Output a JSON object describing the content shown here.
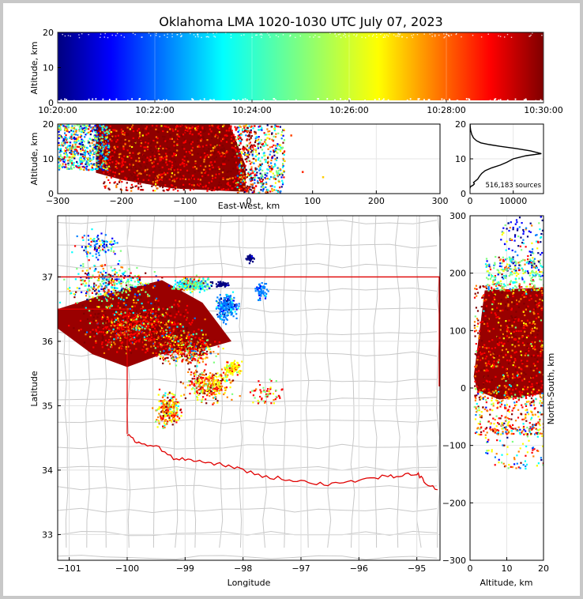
{
  "chart_data": {
    "type": "scatter",
    "title": "Oklahoma LMA 1020-1030 UTC July 07, 2023",
    "colormap": "jet (time)",
    "panels": {
      "time_height": {
        "ylabel": "Altitude, km",
        "ylim": [
          0,
          20
        ],
        "yticks": [
          "0",
          "10",
          "20"
        ],
        "xticks": [
          "10:20:00",
          "10:22:00",
          "10:24:00",
          "10:26:00",
          "10:28:00",
          "10:30:00"
        ],
        "xlim": [
          "10:20:00",
          "10:30:00"
        ]
      },
      "ew_height": {
        "ylabel": "Altitude, km",
        "xlabel": "East-West, km",
        "xlim": [
          -300,
          300
        ],
        "ylim": [
          0,
          20
        ],
        "xticks": [
          "−300",
          "−200",
          "−100",
          "0",
          "100",
          "200",
          "300"
        ],
        "yticks": [
          "0",
          "10",
          "20"
        ],
        "source_extent_x": [
          -300,
          60
        ],
        "source_extent_y": [
          0,
          20
        ]
      },
      "histogram": {
        "annotation": "516,183 sources",
        "xticks": [
          "0",
          "10000"
        ],
        "xlim": [
          0,
          17000
        ],
        "yticks": [
          "0",
          "10",
          "20"
        ],
        "ylim": [
          0,
          20
        ],
        "profile": [
          [
            0,
            1.5
          ],
          [
            100,
            2
          ],
          [
            700,
            2.4
          ],
          [
            1000,
            2.8
          ],
          [
            800,
            3.2
          ],
          [
            1200,
            3.6
          ],
          [
            1800,
            4.2
          ],
          [
            2200,
            5.0
          ],
          [
            2700,
            5.8
          ],
          [
            3500,
            6.6
          ],
          [
            5000,
            7.4
          ],
          [
            7000,
            8.2
          ],
          [
            8500,
            9.0
          ],
          [
            10000,
            10.0
          ],
          [
            13000,
            10.9
          ],
          [
            16500,
            11.5
          ],
          [
            14000,
            12.3
          ],
          [
            10500,
            13.0
          ],
          [
            7000,
            13.6
          ],
          [
            4500,
            14.1
          ],
          [
            2500,
            14.6
          ],
          [
            1500,
            15.2
          ],
          [
            800,
            16.0
          ],
          [
            400,
            17.0
          ],
          [
            150,
            18.2
          ],
          [
            40,
            19.3
          ],
          [
            10,
            20
          ]
        ]
      },
      "plan_view": {
        "xlabel": "Longitude",
        "ylabel": "Latitude",
        "xlim": [
          -101.2,
          -94.6
        ],
        "ylim": [
          32.6,
          37.95
        ],
        "xticks": [
          "−101",
          "−100",
          "−99",
          "−98",
          "−97",
          "−96",
          "−95"
        ],
        "yticks": [
          "33",
          "34",
          "35",
          "36",
          "37"
        ],
        "grid": true
      },
      "ns_height": {
        "xlabel": "Altitude, km",
        "ylabel": "North-South, km",
        "xlim": [
          0,
          20
        ],
        "ylim": [
          -300,
          300
        ],
        "xticks": [
          "0",
          "10",
          "20"
        ],
        "yticks": [
          "−300",
          "−200",
          "−100",
          "0",
          "100",
          "200",
          "300"
        ]
      }
    }
  },
  "colors": {
    "background": "#c8c8c8",
    "state_border": "#e00000",
    "county_lines": "#c0c0c0",
    "histogram_line": "#000000",
    "jet": [
      "#00007f",
      "#0000ff",
      "#007fff",
      "#00ffff",
      "#7fff7f",
      "#ffff00",
      "#ff7f00",
      "#ff0000",
      "#7f0000"
    ]
  }
}
